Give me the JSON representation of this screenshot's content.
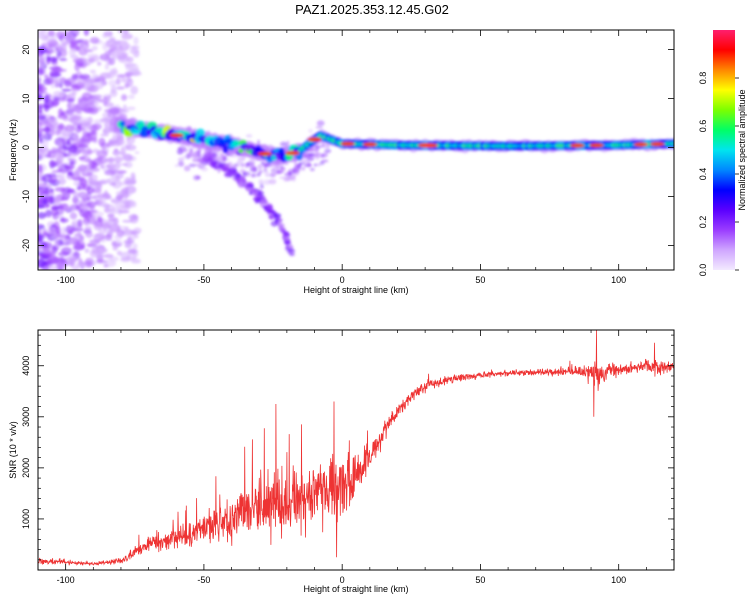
{
  "title": "PAZ1.2025.353.12.45.G02",
  "chart_data": [
    {
      "type": "heatmap",
      "xlabel": "Height of straight line (km)",
      "ylabel": "Frequency (Hz)",
      "xlim": [
        -110,
        120
      ],
      "ylim": [
        -25,
        24
      ],
      "xticks": [
        -100,
        -50,
        0,
        50,
        100
      ],
      "yticks": [
        -20,
        -10,
        0,
        10,
        20
      ],
      "colorbar": {
        "label": "Normalized spectral amplitude",
        "range": [
          0,
          1
        ],
        "ticks": [
          "0.0",
          "0.2",
          "0.4",
          "0.6",
          "0.8"
        ],
        "tick_values": [
          0.0,
          0.2,
          0.4,
          0.6,
          0.8
        ],
        "colors": [
          "#f3eaff",
          "#cfa6ff",
          "#9a3cff",
          "#5a00ff",
          "#0000ff",
          "#0088ff",
          "#00e5ee",
          "#00ff66",
          "#7cff00",
          "#ffff00",
          "#ff8800",
          "#ff0000",
          "#ff1f6e"
        ]
      },
      "features": {
        "noise_region_x": [
          -110,
          -80
        ],
        "dispersion_track": [
          {
            "x": -80,
            "f": 4.5
          },
          {
            "x": -70,
            "f": 3.5
          },
          {
            "x": -60,
            "f": 2.5
          },
          {
            "x": -50,
            "f": 1.5
          },
          {
            "x": -40,
            "f": 0.5
          },
          {
            "x": -30,
            "f": -1.0
          },
          {
            "x": -22,
            "f": -2.0
          },
          {
            "x": -15,
            "f": -0.5
          },
          {
            "x": -8,
            "f": 2.5
          },
          {
            "x": 0,
            "f": 0.8
          },
          {
            "x": 20,
            "f": 0.5
          },
          {
            "x": 60,
            "f": 0.3
          },
          {
            "x": 100,
            "f": 0.5
          },
          {
            "x": 120,
            "f": 0.8
          }
        ],
        "secondary_branch": [
          {
            "x": -50,
            "f": -2
          },
          {
            "x": -40,
            "f": -5
          },
          {
            "x": -30,
            "f": -10
          },
          {
            "x": -22,
            "f": -16
          },
          {
            "x": -18,
            "f": -22
          }
        ]
      }
    },
    {
      "type": "line",
      "xlabel": "Height of straight line (km)",
      "ylabel": "SNR (10 * v/v)",
      "xlim": [
        -110,
        120
      ],
      "ylim": [
        0,
        4700
      ],
      "xticks": [
        -100,
        -50,
        0,
        50,
        100
      ],
      "yticks": [
        1000,
        2000,
        3000,
        4000
      ],
      "color": "#ee3333",
      "envelope": [
        {
          "x": -110,
          "mean": 180,
          "amp": 120
        },
        {
          "x": -90,
          "mean": 120,
          "amp": 60
        },
        {
          "x": -80,
          "mean": 180,
          "amp": 100
        },
        {
          "x": -70,
          "mean": 500,
          "amp": 300
        },
        {
          "x": -60,
          "mean": 650,
          "amp": 450
        },
        {
          "x": -50,
          "mean": 800,
          "amp": 600
        },
        {
          "x": -40,
          "mean": 1000,
          "amp": 800
        },
        {
          "x": -30,
          "mean": 1200,
          "amp": 1100
        },
        {
          "x": -25,
          "mean": 1300,
          "amp": 1300
        },
        {
          "x": -20,
          "mean": 1350,
          "amp": 1000
        },
        {
          "x": -10,
          "mean": 1500,
          "amp": 1100
        },
        {
          "x": -5,
          "mean": 1600,
          "amp": 1200
        },
        {
          "x": 0,
          "mean": 1500,
          "amp": 1200
        },
        {
          "x": 5,
          "mean": 1800,
          "amp": 800
        },
        {
          "x": 10,
          "mean": 2200,
          "amp": 500
        },
        {
          "x": 15,
          "mean": 2700,
          "amp": 400
        },
        {
          "x": 20,
          "mean": 3100,
          "amp": 300
        },
        {
          "x": 25,
          "mean": 3400,
          "amp": 250
        },
        {
          "x": 30,
          "mean": 3600,
          "amp": 200
        },
        {
          "x": 40,
          "mean": 3750,
          "amp": 150
        },
        {
          "x": 50,
          "mean": 3820,
          "amp": 120
        },
        {
          "x": 60,
          "mean": 3850,
          "amp": 120
        },
        {
          "x": 70,
          "mean": 3870,
          "amp": 130
        },
        {
          "x": 80,
          "mean": 3880,
          "amp": 140
        },
        {
          "x": 88,
          "mean": 3900,
          "amp": 200
        },
        {
          "x": 92,
          "mean": 3800,
          "amp": 600
        },
        {
          "x": 96,
          "mean": 3900,
          "amp": 300
        },
        {
          "x": 105,
          "mean": 3950,
          "amp": 200
        },
        {
          "x": 110,
          "mean": 4000,
          "amp": 250
        },
        {
          "x": 115,
          "mean": 3950,
          "amp": 300
        },
        {
          "x": 120,
          "mean": 4000,
          "amp": 150
        }
      ],
      "notable_points": [
        {
          "x": 92,
          "y": 4700
        },
        {
          "x": 91,
          "y": 3000
        },
        {
          "x": -24,
          "y": 3250
        },
        {
          "x": -3,
          "y": 3300
        },
        {
          "x": -2,
          "y": 250
        },
        {
          "x": 113,
          "y": 4450
        }
      ]
    }
  ]
}
